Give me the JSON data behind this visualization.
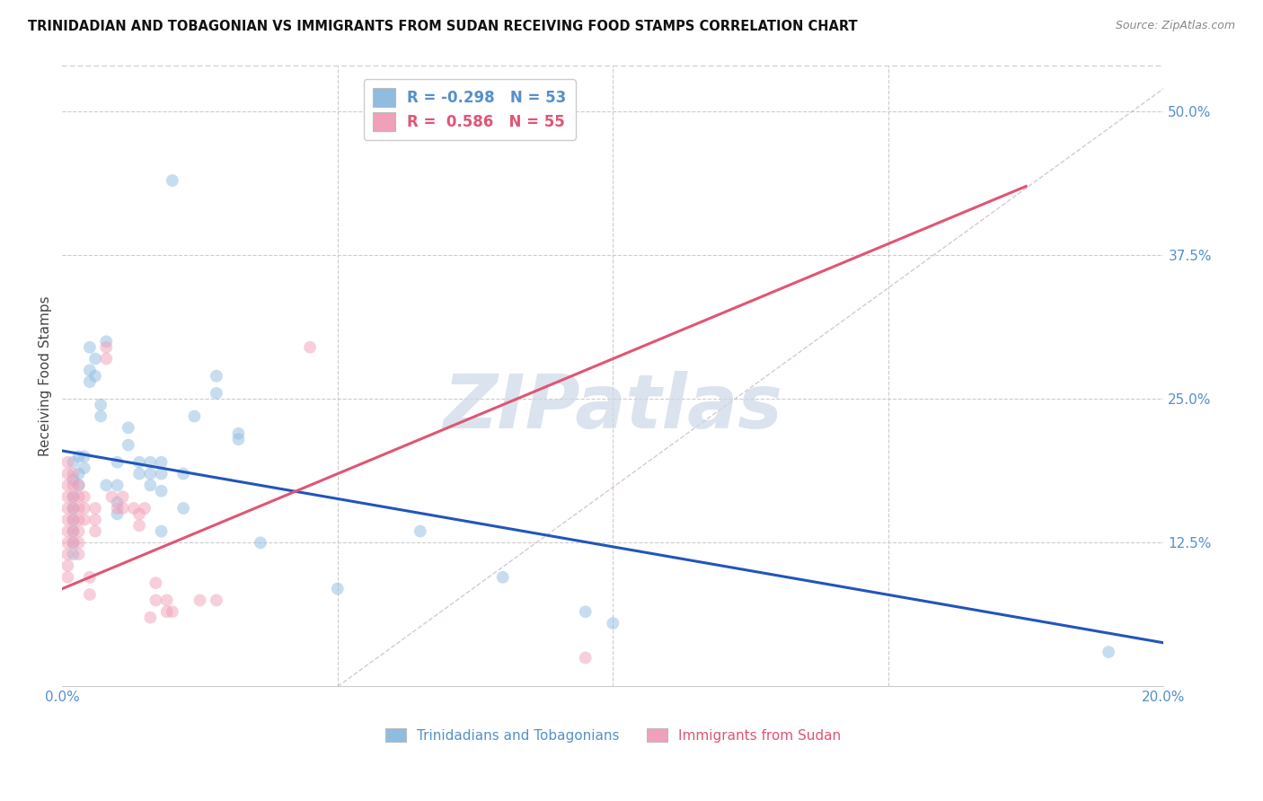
{
  "title": "TRINIDADIAN AND TOBAGONIAN VS IMMIGRANTS FROM SUDAN RECEIVING FOOD STAMPS CORRELATION CHART",
  "source": "Source: ZipAtlas.com",
  "ylabel": "Receiving Food Stamps",
  "xlim": [
    0.0,
    0.2
  ],
  "ylim": [
    0.0,
    0.54
  ],
  "blue_scatter": [
    [
      0.002,
      0.195
    ],
    [
      0.002,
      0.18
    ],
    [
      0.002,
      0.165
    ],
    [
      0.002,
      0.155
    ],
    [
      0.002,
      0.145
    ],
    [
      0.002,
      0.135
    ],
    [
      0.002,
      0.125
    ],
    [
      0.002,
      0.115
    ],
    [
      0.003,
      0.2
    ],
    [
      0.003,
      0.185
    ],
    [
      0.003,
      0.175
    ],
    [
      0.004,
      0.2
    ],
    [
      0.004,
      0.19
    ],
    [
      0.005,
      0.295
    ],
    [
      0.005,
      0.275
    ],
    [
      0.005,
      0.265
    ],
    [
      0.006,
      0.285
    ],
    [
      0.006,
      0.27
    ],
    [
      0.007,
      0.245
    ],
    [
      0.007,
      0.235
    ],
    [
      0.008,
      0.3
    ],
    [
      0.008,
      0.175
    ],
    [
      0.01,
      0.195
    ],
    [
      0.01,
      0.175
    ],
    [
      0.01,
      0.16
    ],
    [
      0.01,
      0.15
    ],
    [
      0.012,
      0.225
    ],
    [
      0.012,
      0.21
    ],
    [
      0.014,
      0.195
    ],
    [
      0.014,
      0.185
    ],
    [
      0.016,
      0.195
    ],
    [
      0.016,
      0.185
    ],
    [
      0.016,
      0.175
    ],
    [
      0.018,
      0.195
    ],
    [
      0.018,
      0.185
    ],
    [
      0.018,
      0.17
    ],
    [
      0.018,
      0.135
    ],
    [
      0.02,
      0.44
    ],
    [
      0.022,
      0.155
    ],
    [
      0.022,
      0.185
    ],
    [
      0.024,
      0.235
    ],
    [
      0.028,
      0.27
    ],
    [
      0.028,
      0.255
    ],
    [
      0.032,
      0.22
    ],
    [
      0.032,
      0.215
    ],
    [
      0.036,
      0.125
    ],
    [
      0.05,
      0.085
    ],
    [
      0.065,
      0.135
    ],
    [
      0.08,
      0.095
    ],
    [
      0.095,
      0.065
    ],
    [
      0.1,
      0.055
    ],
    [
      0.19,
      0.03
    ]
  ],
  "pink_scatter": [
    [
      0.001,
      0.195
    ],
    [
      0.001,
      0.185
    ],
    [
      0.001,
      0.175
    ],
    [
      0.001,
      0.165
    ],
    [
      0.001,
      0.155
    ],
    [
      0.001,
      0.145
    ],
    [
      0.001,
      0.135
    ],
    [
      0.001,
      0.125
    ],
    [
      0.001,
      0.115
    ],
    [
      0.001,
      0.105
    ],
    [
      0.001,
      0.095
    ],
    [
      0.002,
      0.185
    ],
    [
      0.002,
      0.175
    ],
    [
      0.002,
      0.165
    ],
    [
      0.002,
      0.155
    ],
    [
      0.002,
      0.145
    ],
    [
      0.002,
      0.135
    ],
    [
      0.002,
      0.125
    ],
    [
      0.003,
      0.175
    ],
    [
      0.003,
      0.165
    ],
    [
      0.003,
      0.155
    ],
    [
      0.003,
      0.145
    ],
    [
      0.003,
      0.135
    ],
    [
      0.003,
      0.125
    ],
    [
      0.003,
      0.115
    ],
    [
      0.004,
      0.165
    ],
    [
      0.004,
      0.155
    ],
    [
      0.004,
      0.145
    ],
    [
      0.005,
      0.095
    ],
    [
      0.005,
      0.08
    ],
    [
      0.006,
      0.155
    ],
    [
      0.006,
      0.145
    ],
    [
      0.006,
      0.135
    ],
    [
      0.008,
      0.295
    ],
    [
      0.008,
      0.285
    ],
    [
      0.009,
      0.165
    ],
    [
      0.01,
      0.155
    ],
    [
      0.011,
      0.165
    ],
    [
      0.011,
      0.155
    ],
    [
      0.013,
      0.155
    ],
    [
      0.014,
      0.15
    ],
    [
      0.014,
      0.14
    ],
    [
      0.015,
      0.155
    ],
    [
      0.016,
      0.06
    ],
    [
      0.017,
      0.09
    ],
    [
      0.017,
      0.075
    ],
    [
      0.019,
      0.075
    ],
    [
      0.019,
      0.065
    ],
    [
      0.02,
      0.065
    ],
    [
      0.025,
      0.075
    ],
    [
      0.028,
      0.075
    ],
    [
      0.045,
      0.295
    ],
    [
      0.095,
      0.025
    ]
  ],
  "blue_line": {
    "x0": 0.0,
    "y0": 0.205,
    "x1": 0.2,
    "y1": 0.038
  },
  "pink_line": {
    "x0": 0.0,
    "y0": 0.085,
    "x1": 0.175,
    "y1": 0.435
  },
  "diag_line": {
    "x0": 0.05,
    "y0": 0.0,
    "x1": 0.2,
    "y1": 0.52
  },
  "scatter_size": 100,
  "scatter_alpha": 0.5,
  "blue_color": "#90bce0",
  "pink_color": "#f0a0b8",
  "blue_line_color": "#2255bb",
  "pink_line_color": "#e05575",
  "diag_line_color": "#ccbbcc",
  "watermark": "ZIPatlas",
  "watermark_color": "#ccd8e8",
  "background_color": "#ffffff",
  "grid_color": "#cccccc"
}
